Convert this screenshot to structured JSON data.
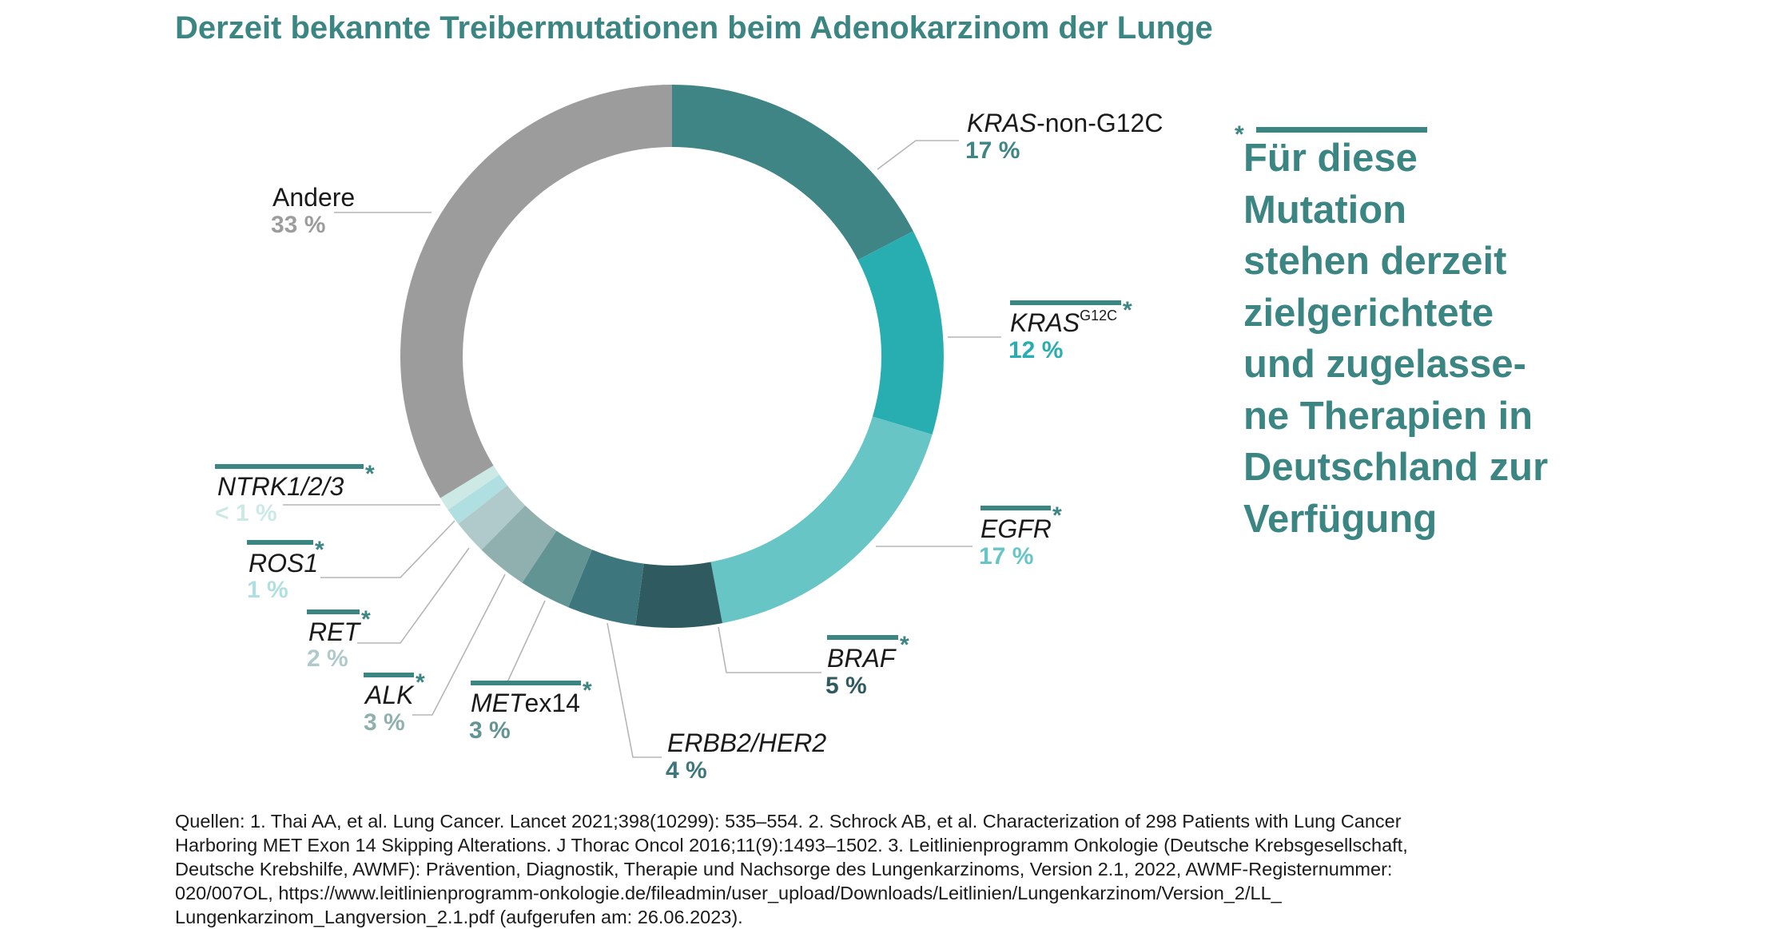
{
  "chart_data": {
    "type": "pie",
    "subtype": "donut",
    "title": "Derzeit bekannte Treibermutationen beim Adenokarzinom der Lunge",
    "legend": "none (direct labels)",
    "series": [
      {
        "label_italic": "KRAS",
        "label_rest": "-non-G12C",
        "superscript": "",
        "value": 17,
        "display": "17 %",
        "color": "#3f8585",
        "targeted": false
      },
      {
        "label_italic": "KRAS",
        "label_rest": "",
        "superscript": "G12C",
        "value": 12,
        "display": "12 %",
        "color": "#28aeb0",
        "targeted": true
      },
      {
        "label_italic": "EGFR",
        "label_rest": "",
        "superscript": "",
        "value": 17,
        "display": "17 %",
        "color": "#67c5c6",
        "targeted": true
      },
      {
        "label_italic": "BRAF",
        "label_rest": "",
        "superscript": "",
        "value": 5,
        "display": "5 %",
        "color": "#2f5b60",
        "targeted": true
      },
      {
        "label_italic": "ERBB2/HER2",
        "label_rest": "",
        "superscript": "",
        "value": 4,
        "display": "4 %",
        "color": "#3d777d",
        "targeted": false
      },
      {
        "label_italic": "MET",
        "label_rest": "ex14",
        "superscript": "",
        "value": 3,
        "display": "3 %",
        "color": "#639494",
        "targeted": true
      },
      {
        "label_italic": "ALK",
        "label_rest": "",
        "superscript": "",
        "value": 3,
        "display": "3 %",
        "color": "#8fb0ae",
        "targeted": true
      },
      {
        "label_italic": "RET",
        "label_rest": "",
        "superscript": "",
        "value": 2,
        "display": "2 %",
        "color": "#b0cacb",
        "targeted": true
      },
      {
        "label_italic": "ROS1",
        "label_rest": "",
        "superscript": "",
        "value": 1,
        "display": "1 %",
        "color": "#b0dfe1",
        "targeted": true
      },
      {
        "label_italic": "NTRK1/2/3",
        "label_rest": "",
        "superscript": "",
        "value": 0.8,
        "display": "< 1 %",
        "color": "#cce9e6",
        "targeted": true
      },
      {
        "label_italic": "",
        "label_rest": "Andere",
        "superscript": "",
        "value": 33,
        "display": "33 %",
        "color": "#9c9c9c",
        "targeted": false
      }
    ]
  },
  "note": {
    "marker": "*",
    "lines": [
      "Für diese",
      "Mutation",
      "stehen derzeit",
      "zielgerichtete",
      "und zugelasse-",
      "ne Therapien in",
      "Deutschland zur",
      "Verfügung"
    ],
    "color": "#3b8583"
  },
  "footnote": {
    "lines": [
      "Quellen: 1. Thai AA, et al. Lung Cancer. Lancet 2021;398(10299): 535–554. 2. Schrock AB, et al. Characterization of 298 Patients with Lung Cancer",
      "Harboring MET Exon 14 Skipping Alterations. J Thorac Oncol 2016;11(9):1493–1502. 3. Leitlinienprogramm Onkologie (Deutsche Krebsgesellschaft,",
      "Deutsche Krebshilfe, AWMF): Prävention, Diagnostik, Therapie und Nachsorge des Lungenkarzinoms, Version 2.1, 2022, AWMF-Registernummer:",
      "020/007OL, https://www.leitlinienprogramm-onkologie.de/fileadmin/user_upload/Downloads/Leitlinien/Lungenkarzinom/Version_2/LL_",
      "Lungenkarzinom_Langversion_2.1.pdf (aufgerufen am: 26.06.2023)."
    ]
  }
}
